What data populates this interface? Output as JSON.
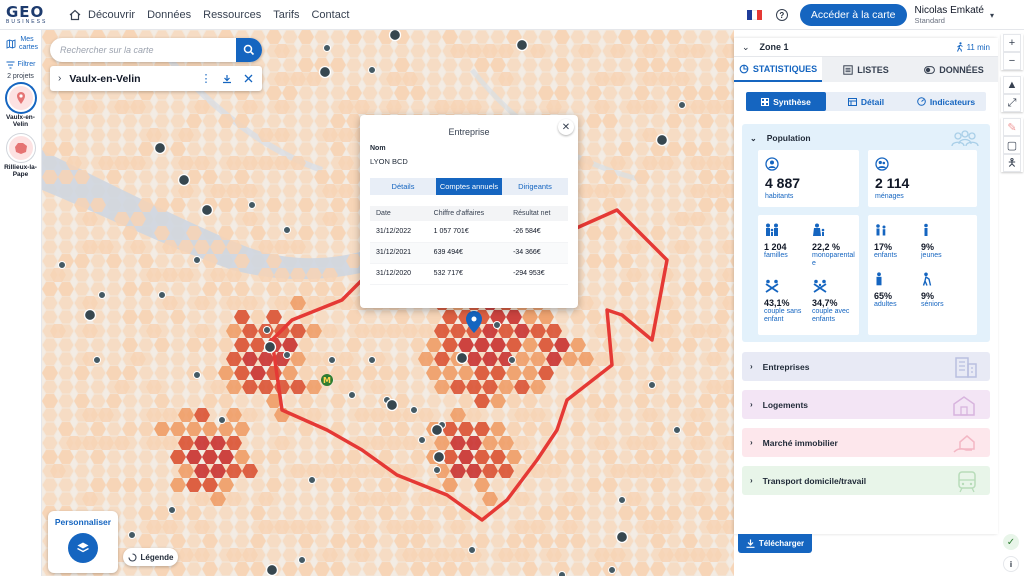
{
  "app": {
    "logo_main": "GEO",
    "logo_sub": "BUSINESS"
  },
  "nav": {
    "items": [
      "Découvrir",
      "Données",
      "Ressources",
      "Tarifs",
      "Contact"
    ]
  },
  "header": {
    "access_button": "Accéder à la carte",
    "user_name": "Nicolas Emkaté",
    "user_plan": "Standard",
    "flag_colors": [
      "#1f3c99",
      "#ffffff",
      "#e53935"
    ]
  },
  "sidebar": {
    "my_maps": "Mes cartes",
    "filter": "Filtrer",
    "projects_count": "2 projets",
    "projects": [
      {
        "label": "Vaulx-en-Velin",
        "active": true
      },
      {
        "label": "Rillieux-la-Pape",
        "active": false
      }
    ]
  },
  "search": {
    "placeholder": "Rechercher sur la carte",
    "place_name": "Vaulx-en-Velin"
  },
  "popup": {
    "title": "Entreprise",
    "nom_label": "Nom",
    "nom_value": "LYON BCD",
    "tabs": [
      "Détails",
      "Comptes annuels",
      "Dirigeants"
    ],
    "active_tab": "Comptes annuels",
    "columns": [
      "Date",
      "Chiffre d'affaires",
      "Résultat net"
    ],
    "rows": [
      [
        "31/12/2022",
        "1 057 701€",
        "-26 584€"
      ],
      [
        "31/12/2021",
        "639 494€",
        "-34 366€"
      ],
      [
        "31/12/2020",
        "532 717€",
        "-294 953€"
      ]
    ]
  },
  "map_controls": {
    "personalize": "Personnaliser",
    "legend": "Légende"
  },
  "panel": {
    "zone_name": "Zone 1",
    "travel_time": "11 min",
    "main_tabs": [
      "STATISTIQUES",
      "LISTES",
      "DONNÉES"
    ],
    "sub_tabs": [
      "Synthèse",
      "Détail",
      "Indicateurs"
    ],
    "population": {
      "title": "Population",
      "habitants_value": "4 887",
      "habitants_label": "habitants",
      "menages_value": "2 114",
      "menages_label": "ménages",
      "family_stats": [
        {
          "value": "1 204",
          "label": "familles"
        },
        {
          "value": "22,2 %",
          "label": "monoparentale"
        },
        {
          "value": "43,1%",
          "label": "couple sans enfant"
        },
        {
          "value": "34,7%",
          "label": "couple avec enfants"
        }
      ],
      "age_stats": [
        {
          "value": "17%",
          "label": "enfants"
        },
        {
          "value": "9%",
          "label": "jeunes"
        },
        {
          "value": "65%",
          "label": "adultes"
        },
        {
          "value": "9%",
          "label": "séniors"
        }
      ]
    },
    "sections": [
      {
        "label": "Entreprises",
        "bg": "#e8eaf5",
        "icon_color": "#b9bfe0"
      },
      {
        "label": "Logements",
        "bg": "#f3e5f5",
        "icon_color": "#d8b4de"
      },
      {
        "label": "Marché immobilier",
        "bg": "#fde7ec",
        "icon_color": "#f3b7c4"
      },
      {
        "label": "Transport domicile/travail",
        "bg": "#e8f5e9",
        "icon_color": "#b7dcb9"
      }
    ],
    "download": "Télécharger"
  },
  "colors": {
    "primary": "#1565c0",
    "route": "#e53935",
    "hex_light": "#f7d3b5",
    "hex_mid": "#ef9a63",
    "hex_dark": "#d84a2b",
    "hex_darkest": "#c62828"
  }
}
